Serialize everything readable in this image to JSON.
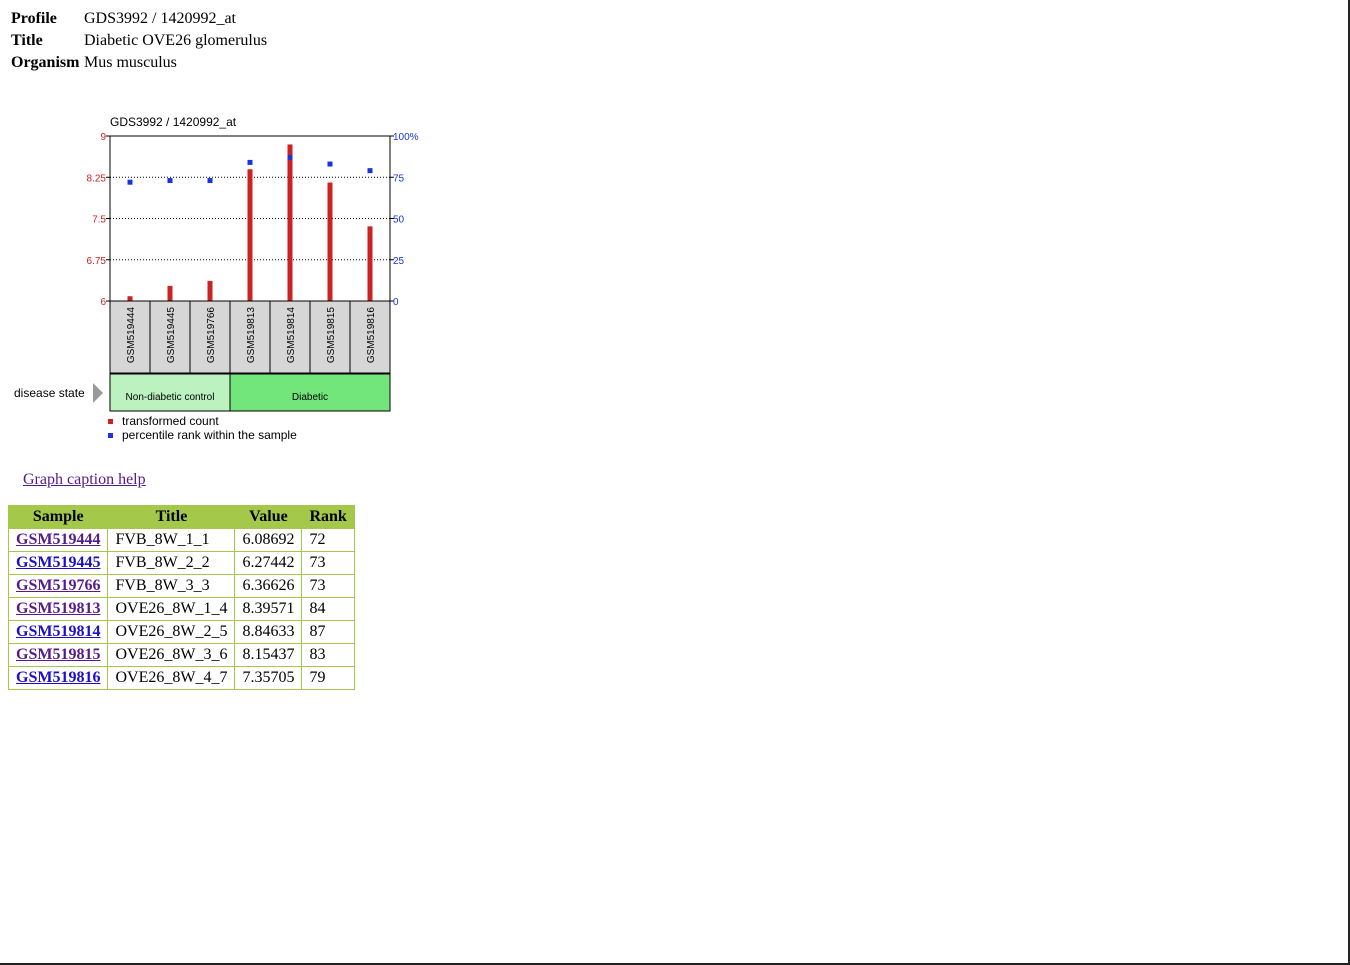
{
  "profile": {
    "profile_label": "Profile",
    "profile_value": "GDS3992 / 1420992_at",
    "title_label": "Title",
    "title_value": "Diabetic OVE26 glomerulus",
    "organism_label": "Organism",
    "organism_value": "Mus musculus"
  },
  "chart_data": {
    "type": "bar",
    "title": "GDS3992 / 1420992_at",
    "categories": [
      "GSM519444",
      "GSM519445",
      "GSM519766",
      "GSM519813",
      "GSM519814",
      "GSM519815",
      "GSM519816"
    ],
    "series": [
      {
        "name": "transformed count",
        "axis": "left",
        "color": "#cc2222",
        "values": [
          6.08692,
          6.27442,
          6.36626,
          8.39571,
          8.84633,
          8.15437,
          7.35705
        ]
      },
      {
        "name": "percentile rank within the sample",
        "axis": "right",
        "color": "#1a33dd",
        "values": [
          72,
          73,
          73,
          84,
          87,
          83,
          79
        ]
      }
    ],
    "left_axis": {
      "ylim": [
        6,
        9
      ],
      "ticks": [
        "9",
        "8.25",
        "7.5",
        "6.75",
        "6"
      ],
      "tick_values": [
        9,
        8.25,
        7.5,
        6.75,
        6
      ],
      "color": "#cc2222"
    },
    "right_axis": {
      "ylim": [
        0,
        100
      ],
      "ticks": [
        "100%",
        "75",
        "50",
        "25",
        "0"
      ],
      "tick_values": [
        100,
        75,
        50,
        25,
        0
      ],
      "color": "#1a33dd"
    },
    "grid": "dotted at 8.25, 7.5, 6.75",
    "groups": {
      "label": "disease state",
      "items": [
        {
          "name": "Non-diabetic control",
          "count": 3,
          "color": "#bbf2c0"
        },
        {
          "name": "Diabetic",
          "count": 4,
          "color": "#72e67a"
        }
      ]
    },
    "legend": [
      "transformed count",
      "percentile rank within the sample"
    ],
    "legend_position": "bottom-left"
  },
  "caption_link": "Graph caption help",
  "table": {
    "headers": [
      "Sample",
      "Title",
      "Value",
      "Rank"
    ],
    "rows": [
      {
        "sample": "GSM519444",
        "title": "FVB_8W_1_1",
        "value": "6.08692",
        "rank": "72",
        "visited": true
      },
      {
        "sample": "GSM519445",
        "title": "FVB_8W_2_2",
        "value": "6.27442",
        "rank": "73",
        "visited": false
      },
      {
        "sample": "GSM519766",
        "title": "FVB_8W_3_3",
        "value": "6.36626",
        "rank": "73",
        "visited": true
      },
      {
        "sample": "GSM519813",
        "title": "OVE26_8W_1_4",
        "value": "8.39571",
        "rank": "84",
        "visited": true
      },
      {
        "sample": "GSM519814",
        "title": "OVE26_8W_2_5",
        "value": "8.84633",
        "rank": "87",
        "visited": false
      },
      {
        "sample": "GSM519815",
        "title": "OVE26_8W_3_6",
        "value": "8.15437",
        "rank": "83",
        "visited": true
      },
      {
        "sample": "GSM519816",
        "title": "OVE26_8W_4_7",
        "value": "7.35705",
        "rank": "79",
        "visited": false
      }
    ]
  }
}
